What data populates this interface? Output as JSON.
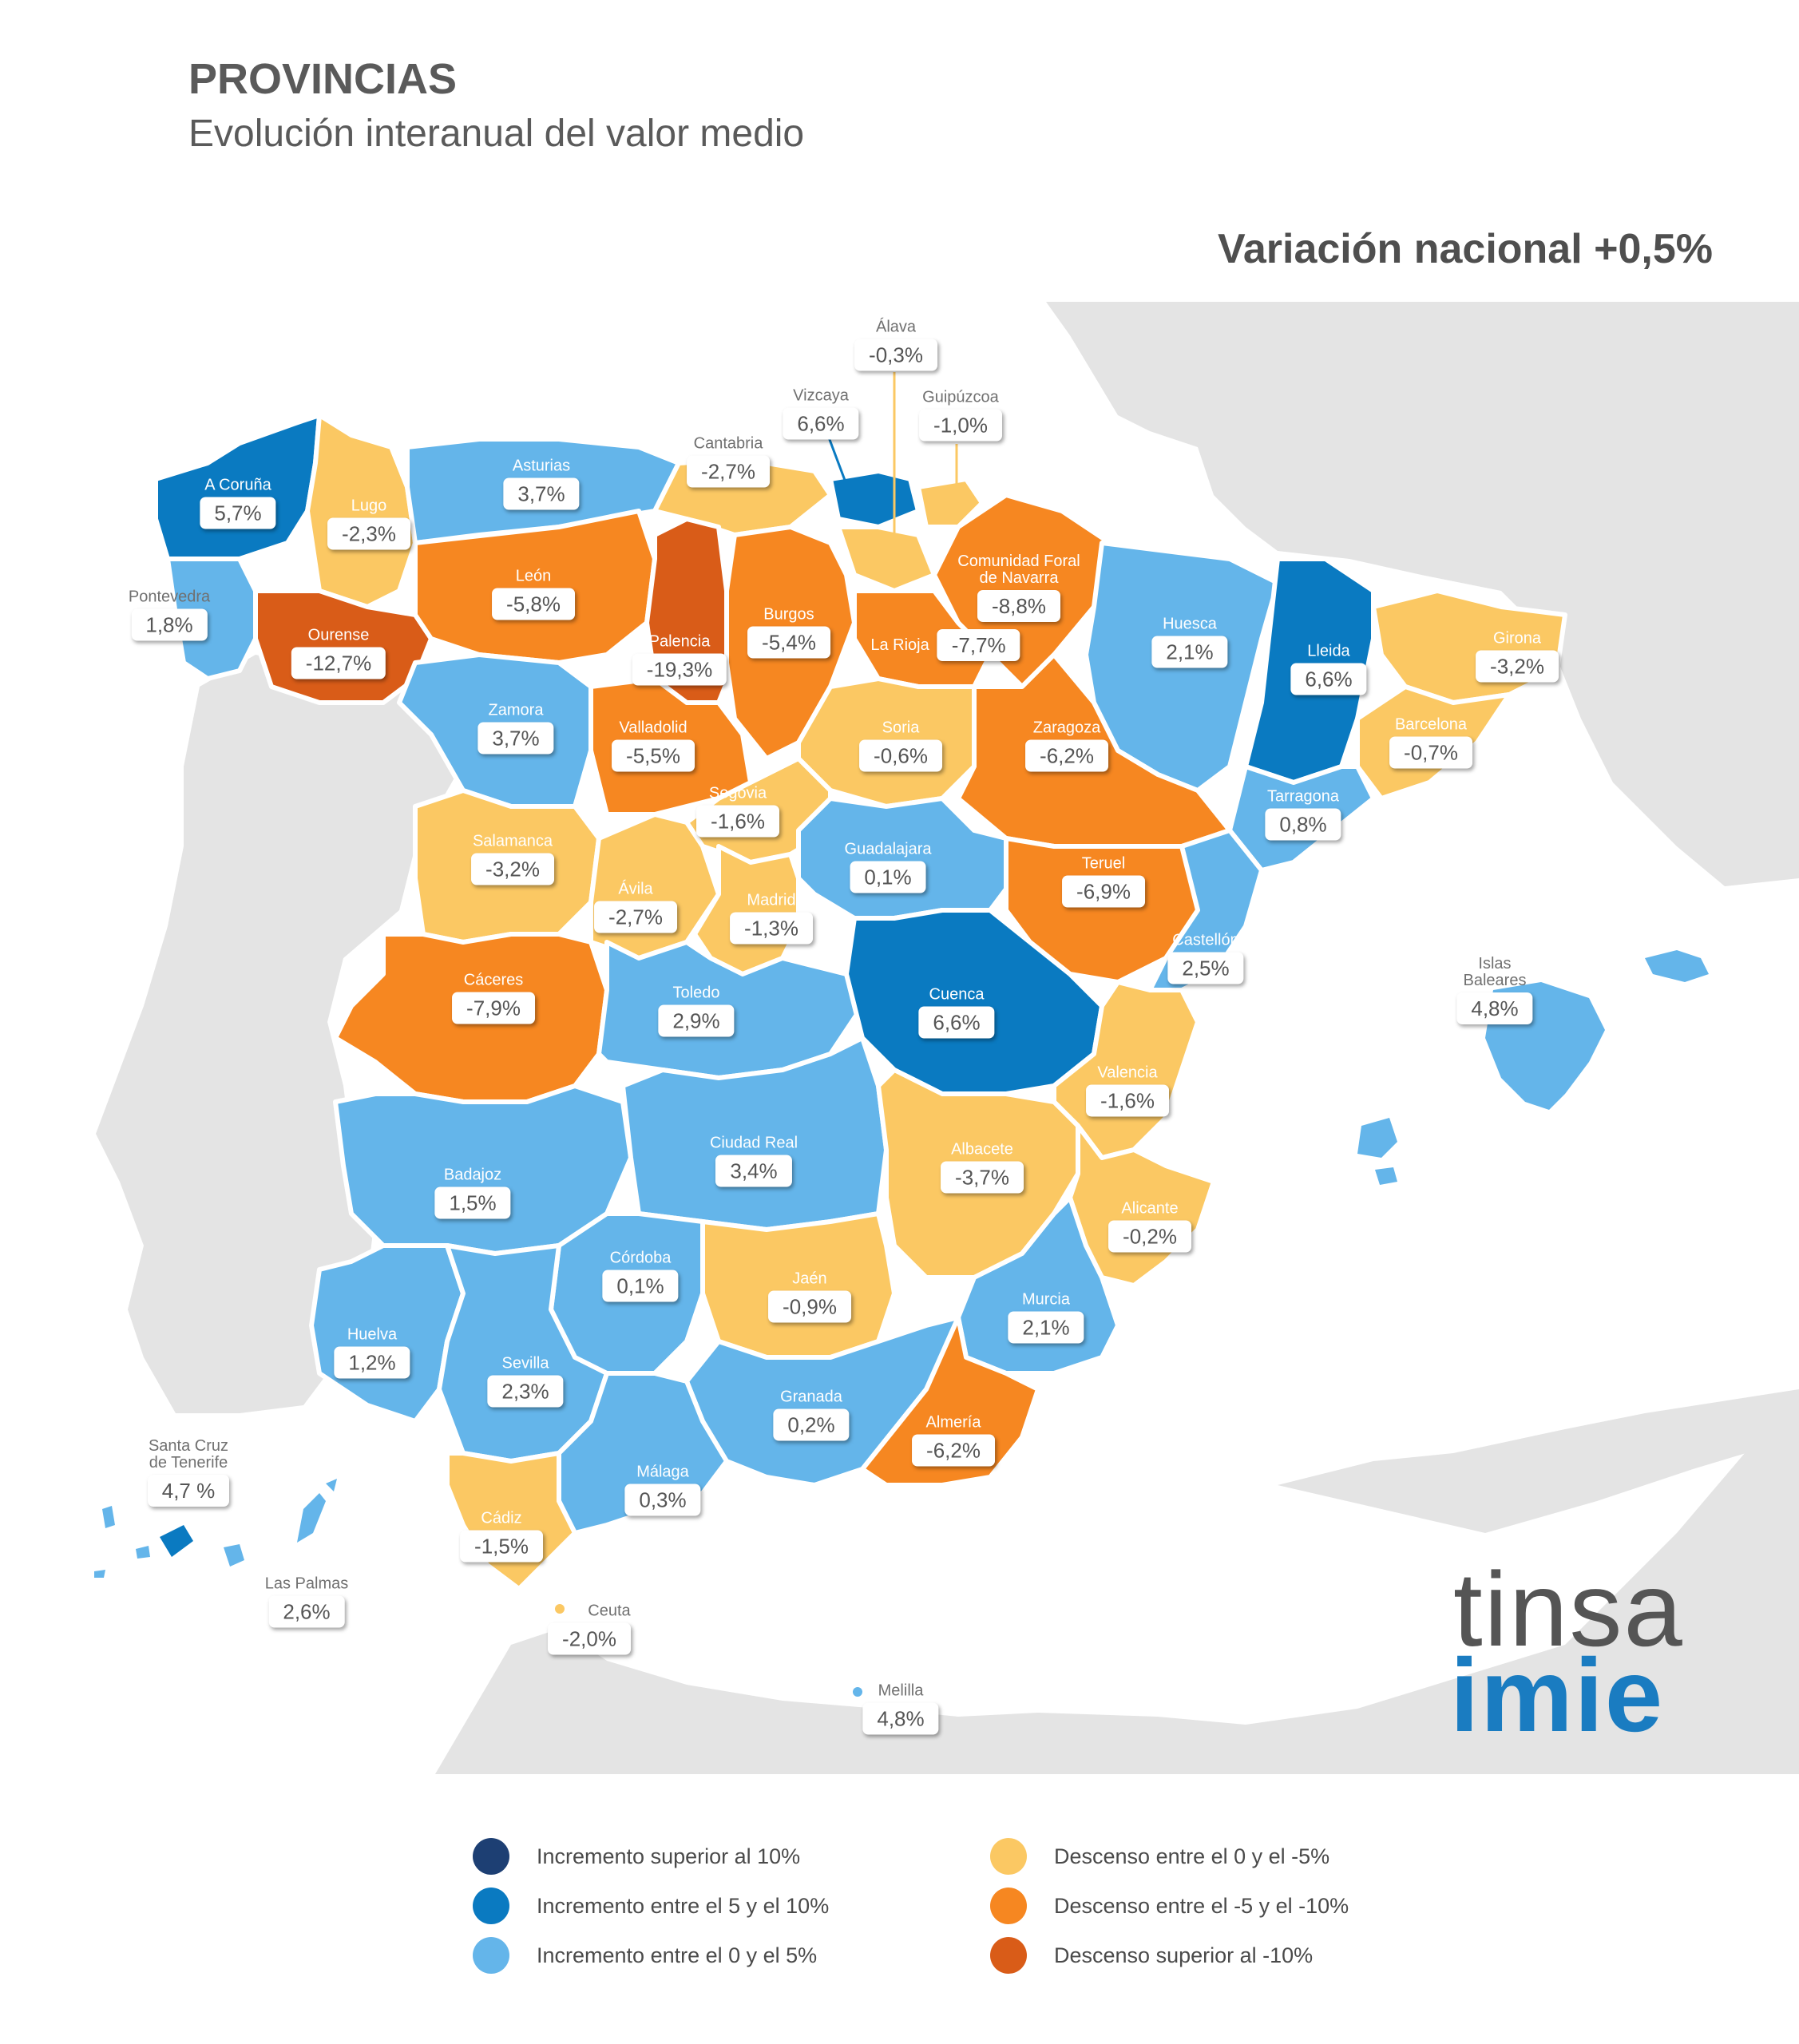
{
  "header": {
    "title": "PROVINCIAS",
    "subtitle": "Evolución interanual del valor medio",
    "national": "Variación nacional +0,5%"
  },
  "colors": {
    "inc_over_10": "#1d3f73",
    "inc_5_10": "#0a7ac1",
    "inc_0_5": "#64b5ea",
    "dec_0_5": "#fbc863",
    "dec_5_10": "#f68721",
    "dec_over_10": "#d95c18",
    "land": "#e4e4e4",
    "sea": "#ffffff"
  },
  "provinces": [
    {
      "name": "Álava",
      "value": "-0,3%",
      "category": "dec_0_5"
    },
    {
      "name": "Vizcaya",
      "value": "6,6%",
      "category": "inc_5_10"
    },
    {
      "name": "Guipúzcoa",
      "value": "-1,0%",
      "category": "dec_0_5"
    },
    {
      "name": "Cantabria",
      "value": "-2,7%",
      "category": "dec_0_5"
    },
    {
      "name": "Asturias",
      "value": "3,7%",
      "category": "inc_0_5"
    },
    {
      "name": "A Coruña",
      "value": "5,7%",
      "category": "inc_5_10"
    },
    {
      "name": "Lugo",
      "value": "-2,3%",
      "category": "dec_0_5"
    },
    {
      "name": "Pontevedra",
      "value": "1,8%",
      "category": "inc_0_5"
    },
    {
      "name": "Ourense",
      "value": "-12,7%",
      "category": "dec_over_10"
    },
    {
      "name": "León",
      "value": "-5,8%",
      "category": "dec_5_10"
    },
    {
      "name": "Palencia",
      "value": "-19,3%",
      "category": "dec_over_10"
    },
    {
      "name": "Burgos",
      "value": "-5,4%",
      "category": "dec_5_10"
    },
    {
      "name": "La Rioja",
      "value": "-7,7%",
      "category": "dec_5_10"
    },
    {
      "name": "Comunidad Foral de Navarra",
      "value": "-8,8%",
      "category": "dec_5_10"
    },
    {
      "name": "Huesca",
      "value": "2,1%",
      "category": "inc_0_5"
    },
    {
      "name": "Lleida",
      "value": "6,6%",
      "category": "inc_5_10"
    },
    {
      "name": "Girona",
      "value": "-3,2%",
      "category": "dec_0_5"
    },
    {
      "name": "Barcelona",
      "value": "-0,7%",
      "category": "dec_0_5"
    },
    {
      "name": "Tarragona",
      "value": "0,8%",
      "category": "inc_0_5"
    },
    {
      "name": "Zamora",
      "value": "3,7%",
      "category": "inc_0_5"
    },
    {
      "name": "Valladolid",
      "value": "-5,5%",
      "category": "dec_5_10"
    },
    {
      "name": "Soria",
      "value": "-0,6%",
      "category": "dec_0_5"
    },
    {
      "name": "Zaragoza",
      "value": "-6,2%",
      "category": "dec_5_10"
    },
    {
      "name": "Segovia",
      "value": "-1,6%",
      "category": "dec_0_5"
    },
    {
      "name": "Salamanca",
      "value": "-3,2%",
      "category": "dec_0_5"
    },
    {
      "name": "Ávila",
      "value": "-2,7%",
      "category": "dec_0_5"
    },
    {
      "name": "Madrid",
      "value": "-1,3%",
      "category": "dec_0_5"
    },
    {
      "name": "Guadalajara",
      "value": "0,1%",
      "category": "inc_0_5"
    },
    {
      "name": "Teruel",
      "value": "-6,9%",
      "category": "dec_5_10"
    },
    {
      "name": "Castellón",
      "value": "2,5%",
      "category": "inc_0_5"
    },
    {
      "name": "Cáceres",
      "value": "-7,9%",
      "category": "dec_5_10"
    },
    {
      "name": "Toledo",
      "value": "2,9%",
      "category": "inc_0_5"
    },
    {
      "name": "Cuenca",
      "value": "6,6%",
      "category": "inc_5_10"
    },
    {
      "name": "Islas Baleares",
      "value": "4,8%",
      "category": "inc_0_5"
    },
    {
      "name": "Valencia",
      "value": "-1,6%",
      "category": "dec_0_5"
    },
    {
      "name": "Ciudad Real",
      "value": "3,4%",
      "category": "inc_0_5"
    },
    {
      "name": "Badajoz",
      "value": "1,5%",
      "category": "inc_0_5"
    },
    {
      "name": "Albacete",
      "value": "-3,7%",
      "category": "dec_0_5"
    },
    {
      "name": "Alicante",
      "value": "-0,2%",
      "category": "dec_0_5"
    },
    {
      "name": "Córdoba",
      "value": "0,1%",
      "category": "inc_0_5"
    },
    {
      "name": "Jaén",
      "value": "-0,9%",
      "category": "dec_0_5"
    },
    {
      "name": "Murcia",
      "value": "2,1%",
      "category": "inc_0_5"
    },
    {
      "name": "Huelva",
      "value": "1,2%",
      "category": "inc_0_5"
    },
    {
      "name": "Sevilla",
      "value": "2,3%",
      "category": "inc_0_5"
    },
    {
      "name": "Granada",
      "value": "0,2%",
      "category": "inc_0_5"
    },
    {
      "name": "Almería",
      "value": "-6,2%",
      "category": "dec_5_10"
    },
    {
      "name": "Santa Cruz de Tenerife",
      "value": "4,7 %",
      "category": "inc_0_5"
    },
    {
      "name": "Málaga",
      "value": "0,3%",
      "category": "inc_0_5"
    },
    {
      "name": "Cádiz",
      "value": "-1,5%",
      "category": "dec_0_5"
    },
    {
      "name": "Las Palmas",
      "value": "2,6%",
      "category": "inc_0_5"
    },
    {
      "name": "Ceuta",
      "value": "-2,0%",
      "category": "dec_0_5"
    },
    {
      "name": "Melilla",
      "value": "4,8%",
      "category": "inc_0_5"
    }
  ],
  "legend": [
    {
      "label": "Incremento superior al 10%",
      "color": "#1d3f73"
    },
    {
      "label": "Incremento entre el 5 y el 10%",
      "color": "#0a7ac1"
    },
    {
      "label": "Incremento entre el 0 y el 5%",
      "color": "#64b5ea"
    },
    {
      "label": "Descenso entre el 0 y el -5%",
      "color": "#fbc863"
    },
    {
      "label": "Descenso entre el -5 y el -10%",
      "color": "#f68721"
    },
    {
      "label": "Descenso superior al -10%",
      "color": "#d95c18"
    }
  ],
  "logo": {
    "line1": "tinsa",
    "line2": "imie"
  }
}
